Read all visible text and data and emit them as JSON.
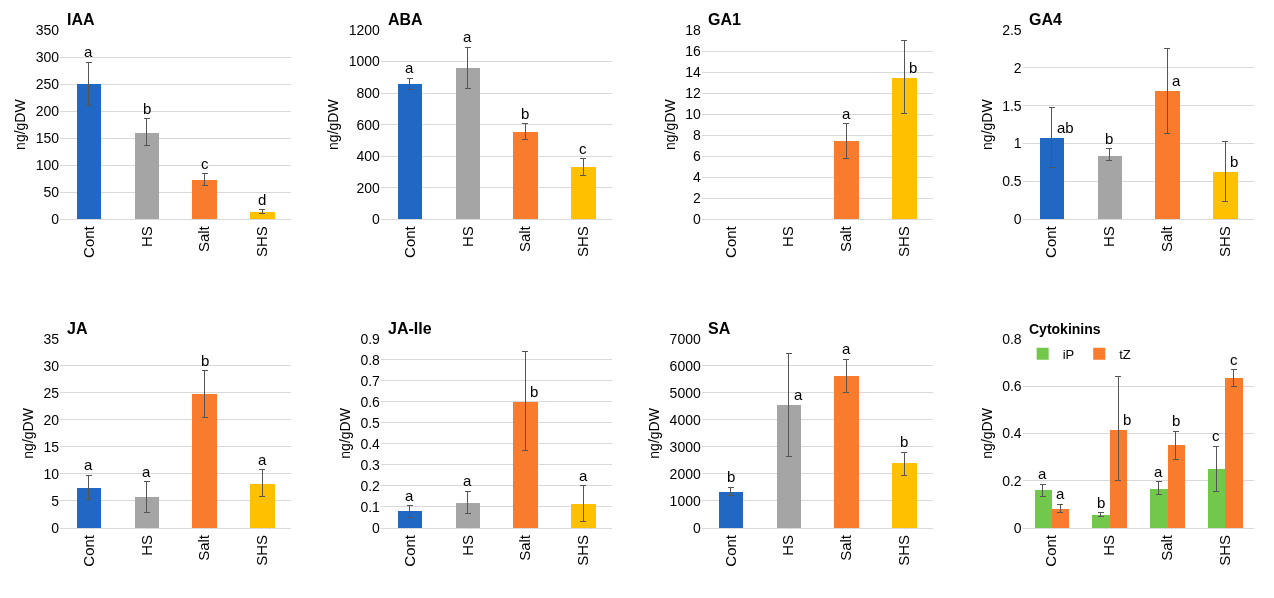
{
  "chart_data": [
    {
      "type": "bar",
      "title": "IAA",
      "ylabel": "ng/gDW",
      "categories": [
        "Cont",
        "HS",
        "Salt",
        "SHS"
      ],
      "values": [
        250,
        160,
        73,
        14
      ],
      "colors": [
        "#2068c2",
        "#a5a5a5",
        "#f87b2e",
        "#ffc000"
      ],
      "errors": [
        [
          210,
          290
        ],
        [
          137,
          186
        ],
        [
          63,
          84
        ],
        [
          10,
          18
        ]
      ],
      "value_labels": [
        "a",
        "b",
        "c",
        "d"
      ],
      "ylim": [
        0,
        350
      ],
      "yticks": [
        0,
        50,
        100,
        150,
        200,
        250,
        300,
        350
      ],
      "grid": "y",
      "legend": false
    },
    {
      "type": "bar",
      "title": "ABA",
      "ylabel": "ng/gDW",
      "categories": [
        "Cont",
        "HS",
        "Salt",
        "SHS"
      ],
      "values": [
        860,
        960,
        555,
        330
      ],
      "colors": [
        "#2068c2",
        "#a5a5a5",
        "#f87b2e",
        "#ffc000"
      ],
      "errors": [
        [
          825,
          895
        ],
        [
          830,
          1090
        ],
        [
          505,
          605
        ],
        [
          280,
          385
        ]
      ],
      "value_labels": [
        "a",
        "a",
        "b",
        "c"
      ],
      "ylim": [
        0,
        1200
      ],
      "yticks": [
        0,
        200,
        400,
        600,
        800,
        1000,
        1200
      ],
      "grid": "y",
      "legend": false
    },
    {
      "type": "bar",
      "title": "GA1",
      "ylabel": "ng/gDW",
      "categories": [
        "Cont",
        "HS",
        "Salt",
        "SHS"
      ],
      "values": [
        null,
        null,
        7.4,
        13.4
      ],
      "colors": [
        "#2068c2",
        "#a5a5a5",
        "#f87b2e",
        "#ffc000"
      ],
      "errors": [
        null,
        null,
        [
          5.8,
          9.1
        ],
        [
          10.1,
          17.0
        ]
      ],
      "value_labels": [
        null,
        null,
        "a",
        "b"
      ],
      "ylim": [
        0,
        18
      ],
      "yticks": [
        0,
        2,
        4,
        6,
        8,
        10,
        12,
        14,
        16,
        18
      ],
      "grid": "y",
      "legend": false
    },
    {
      "type": "bar",
      "title": "GA4",
      "ylabel": "ng/gDW",
      "categories": [
        "Cont",
        "HS",
        "Salt",
        "SHS"
      ],
      "values": [
        1.07,
        0.84,
        1.69,
        0.62
      ],
      "colors": [
        "#2068c2",
        "#a5a5a5",
        "#f87b2e",
        "#ffc000"
      ],
      "errors": [
        [
          0.68,
          1.48
        ],
        [
          0.77,
          0.93
        ],
        [
          1.13,
          2.26
        ],
        [
          0.23,
          1.03
        ]
      ],
      "value_labels": [
        "ab",
        "b",
        "a",
        "b"
      ],
      "ylim": [
        0,
        2.5
      ],
      "yticks": [
        0,
        0.5,
        1,
        1.5,
        2,
        2.5
      ],
      "grid": "y",
      "legend": false
    },
    {
      "type": "bar",
      "title": "JA",
      "ylabel": "ng/gDW",
      "categories": [
        "Cont",
        "HS",
        "Salt",
        "SHS"
      ],
      "values": [
        7.5,
        5.8,
        24.8,
        8.2
      ],
      "colors": [
        "#2068c2",
        "#a5a5a5",
        "#f87b2e",
        "#ffc000"
      ],
      "errors": [
        [
          5.3,
          9.8
        ],
        [
          2.8,
          8.6
        ],
        [
          20.5,
          29.1
        ],
        [
          5.9,
          10.8
        ]
      ],
      "value_labels": [
        "a",
        "a",
        "b",
        "a"
      ],
      "ylim": [
        0,
        35
      ],
      "yticks": [
        0,
        5,
        10,
        15,
        20,
        25,
        30,
        35
      ],
      "grid": "y",
      "legend": false
    },
    {
      "type": "bar",
      "title": "JA-Ile",
      "ylabel": "ng/gDW",
      "categories": [
        "Cont",
        "HS",
        "Salt",
        "SHS"
      ],
      "values": [
        0.08,
        0.12,
        0.6,
        0.115
      ],
      "colors": [
        "#2068c2",
        "#a5a5a5",
        "#f87b2e",
        "#ffc000"
      ],
      "errors": [
        [
          0.05,
          0.105
        ],
        [
          0.07,
          0.175
        ],
        [
          0.37,
          0.84
        ],
        [
          0.03,
          0.2
        ]
      ],
      "value_labels": [
        "a",
        "a",
        "b",
        "a"
      ],
      "ylim": [
        0,
        0.9
      ],
      "yticks": [
        0,
        0.1,
        0.2,
        0.3,
        0.4,
        0.5,
        0.6,
        0.7,
        0.8,
        0.9
      ],
      "grid": "y",
      "legend": false
    },
    {
      "type": "bar",
      "title": "SA",
      "ylabel": "ng/gDW",
      "categories": [
        "Cont",
        "HS",
        "Salt",
        "SHS"
      ],
      "values": [
        1350,
        4550,
        5650,
        2400
      ],
      "colors": [
        "#2068c2",
        "#a5a5a5",
        "#f87b2e",
        "#ffc000"
      ],
      "errors": [
        [
          1200,
          1500
        ],
        [
          2650,
          6450
        ],
        [
          5000,
          6250
        ],
        [
          1950,
          2800
        ]
      ],
      "value_labels": [
        "b",
        "a",
        "a",
        "b"
      ],
      "ylim": [
        0,
        7000
      ],
      "yticks": [
        0,
        1000,
        2000,
        3000,
        4000,
        5000,
        6000,
        7000
      ],
      "grid": "y",
      "legend": false
    },
    {
      "type": "bar",
      "title": "Cytokinins",
      "ylabel": "ng/gDW",
      "categories": [
        "Cont",
        "HS",
        "Salt",
        "SHS"
      ],
      "series": [
        {
          "name": "iP",
          "color": "#72c84a",
          "values": [
            0.16,
            0.058,
            0.165,
            0.25
          ],
          "errors": [
            [
              0.135,
              0.185
            ],
            [
              0.05,
              0.065
            ],
            [
              0.14,
              0.195
            ],
            [
              0.155,
              0.345
            ]
          ],
          "value_labels": [
            "a",
            "b",
            "a",
            "c"
          ]
        },
        {
          "name": "tZ",
          "color": "#f87b2e",
          "values": [
            0.083,
            0.415,
            0.35,
            0.635
          ],
          "errors": [
            [
              0.065,
              0.1
            ],
            [
              0.2,
              0.64
            ],
            [
              0.29,
              0.41
            ],
            [
              0.6,
              0.67
            ]
          ],
          "value_labels": [
            "a",
            "b",
            "b",
            "c"
          ]
        }
      ],
      "ylim": [
        0,
        0.8
      ],
      "yticks": [
        0,
        0.2,
        0.4,
        0.6,
        0.8
      ],
      "grid": "y",
      "legend": "top left"
    }
  ]
}
